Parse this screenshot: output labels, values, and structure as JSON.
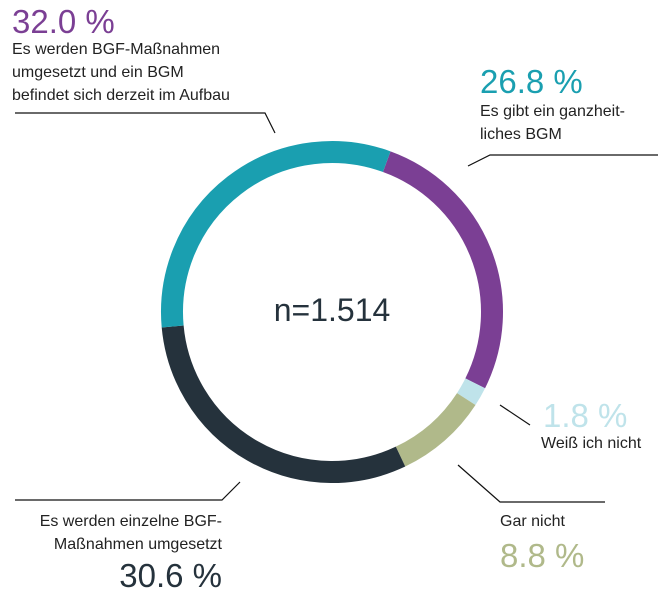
{
  "chart_data": {
    "type": "donut",
    "categories": [
      "Es gibt ein ganzheit-\nliches BGM",
      "Weiß ich nicht",
      "Gar nicht",
      "Es werden einzelne BGF-\nMaßnahmen umgesetzt",
      "Es werden BGF-Maßnahmen\numgesetzt und ein BGM\nbefindet sich derzeit im Aufbau"
    ],
    "values": [
      26.8,
      1.8,
      8.8,
      30.6,
      32.0
    ],
    "value_labels": [
      "26.8 %",
      "1.8 %",
      "8.8 %",
      "30.6 %",
      "32.0 %"
    ],
    "colors": [
      "#7b3f94",
      "#bfe3ea",
      "#b0b98a",
      "#25323c",
      "#1a9fb0"
    ],
    "value_label_colors": [
      "#1a9fb0",
      "#bfe3ea",
      "#b0b98a",
      "#25323c",
      "#7b3f94"
    ],
    "center_label": "n=1.514"
  }
}
